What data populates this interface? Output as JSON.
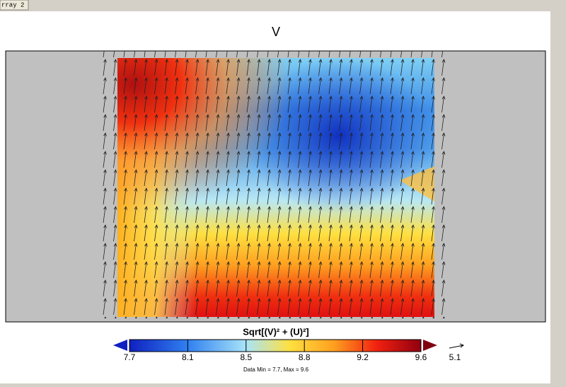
{
  "tab": {
    "label": "rray 2"
  },
  "plot": {
    "title": "V"
  },
  "colorbar": {
    "label": "Sqrt[(V)² + (U)²]",
    "ticks": [
      "7.7",
      "8.1",
      "8.5",
      "8.8",
      "9.2",
      "9.6"
    ]
  },
  "vector_reference": {
    "label": "5.1"
  },
  "footer": {
    "text": "Data Min = 7.7, Max = 9.6"
  }
}
